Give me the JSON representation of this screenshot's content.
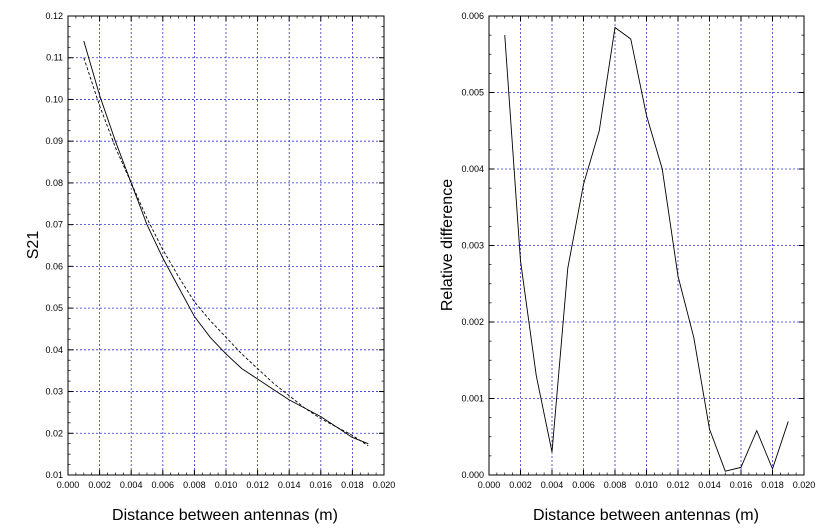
{
  "chart_data": [
    {
      "type": "line",
      "xlabel": "Distance between antennas (m)",
      "ylabel": "S21",
      "xlim": [
        0.0,
        0.02
      ],
      "ylim": [
        0.01,
        0.12
      ],
      "grid": true,
      "x_ticks": [
        "0.000",
        "0.002",
        "0.004",
        "0.006",
        "0.008",
        "0.010",
        "0.012",
        "0.014",
        "0.016",
        "0.018",
        "0.020"
      ],
      "y_ticks": [
        "0.01",
        "0.02",
        "0.03",
        "0.04",
        "0.05",
        "0.06",
        "0.07",
        "0.08",
        "0.09",
        "0.10",
        "0.11",
        "0.12"
      ],
      "series": [
        {
          "style": "solid",
          "color": "#000000",
          "x": [
            0.001,
            0.002,
            0.003,
            0.004,
            0.005,
            0.006,
            0.007,
            0.008,
            0.009,
            0.01,
            0.011,
            0.012,
            0.013,
            0.014,
            0.015,
            0.016,
            0.017,
            0.018,
            0.019
          ],
          "y": [
            0.114,
            0.101,
            0.09,
            0.08,
            0.07,
            0.062,
            0.055,
            0.048,
            0.043,
            0.039,
            0.0355,
            0.033,
            0.0305,
            0.028,
            0.026,
            0.024,
            0.0215,
            0.019,
            0.0175
          ]
        },
        {
          "style": "dashed",
          "color": "#000000",
          "x": [
            0.001,
            0.002,
            0.003,
            0.004,
            0.005,
            0.006,
            0.007,
            0.008,
            0.009,
            0.01,
            0.011,
            0.012,
            0.013,
            0.014,
            0.015,
            0.016,
            0.017,
            0.018,
            0.019
          ],
          "y": [
            0.11,
            0.0985,
            0.0885,
            0.08,
            0.0715,
            0.064,
            0.0575,
            0.0515,
            0.047,
            0.043,
            0.039,
            0.0355,
            0.032,
            0.029,
            0.026,
            0.0235,
            0.0215,
            0.0195,
            0.017
          ]
        }
      ]
    },
    {
      "type": "line",
      "xlabel": "Distance between antennas (m)",
      "ylabel": "Relative difference",
      "xlim": [
        0.0,
        0.02
      ],
      "ylim": [
        0.0,
        0.006
      ],
      "grid": true,
      "x_ticks": [
        "0.000",
        "0.002",
        "0.004",
        "0.006",
        "0.008",
        "0.010",
        "0.012",
        "0.014",
        "0.016",
        "0.018",
        "0.020"
      ],
      "y_ticks": [
        "0.000",
        "0.001",
        "0.002",
        "0.003",
        "0.004",
        "0.005",
        "0.006"
      ],
      "series": [
        {
          "style": "solid",
          "color": "#000000",
          "x": [
            0.001,
            0.002,
            0.003,
            0.004,
            0.005,
            0.006,
            0.007,
            0.008,
            0.009,
            0.01,
            0.011,
            0.012,
            0.013,
            0.014,
            0.015,
            0.016,
            0.017,
            0.018,
            0.019
          ],
          "y": [
            0.00575,
            0.0028,
            0.0013,
            0.0003,
            0.0027,
            0.0038,
            0.0045,
            0.00585,
            0.0057,
            0.0047,
            0.004,
            0.0026,
            0.0018,
            0.0006,
            5e-05,
            0.0001,
            0.00058,
            8e-05,
            0.0007
          ]
        }
      ]
    }
  ],
  "colors": {
    "grid": "#3333cc",
    "axis": "#000000",
    "line": "#000000"
  }
}
